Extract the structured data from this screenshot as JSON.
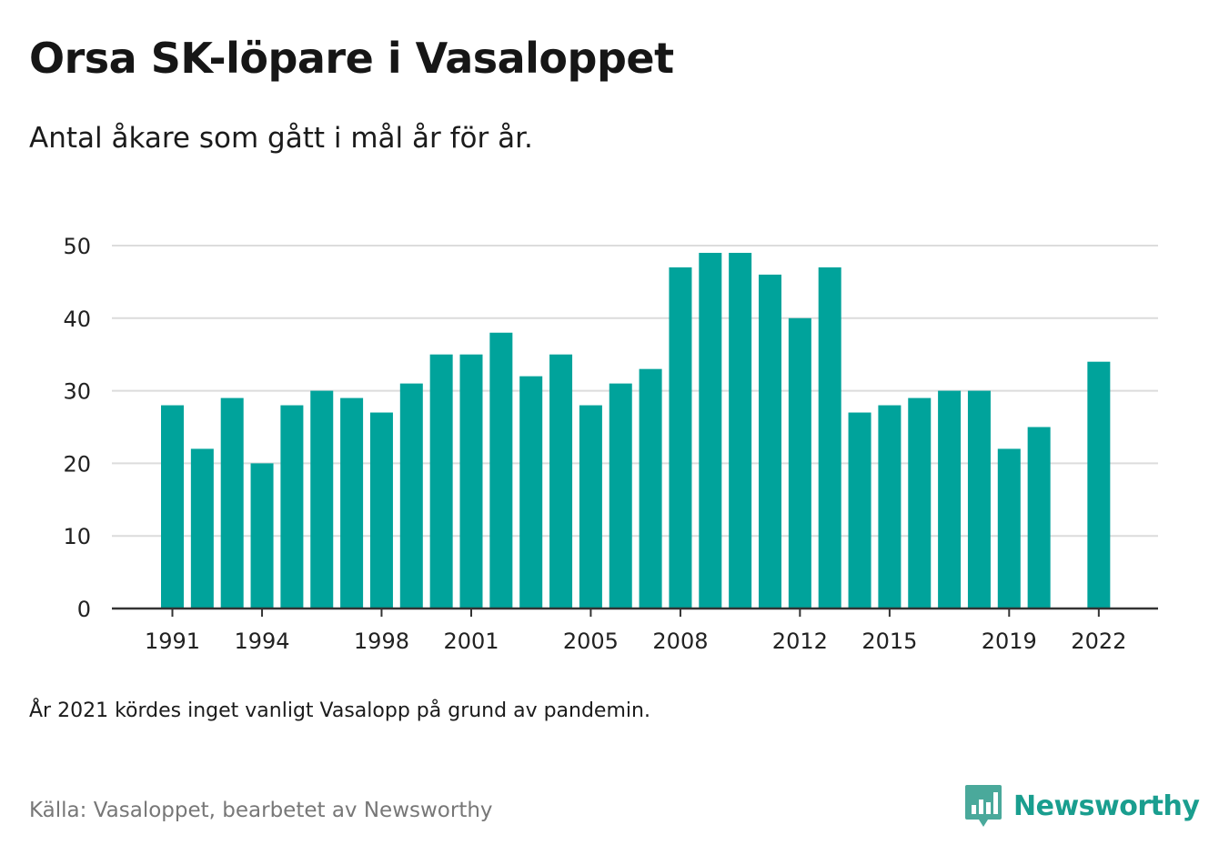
{
  "header": {
    "title": "Orsa SK-löpare i Vasaloppet",
    "subtitle": "Antal åkare som gått i mål år för år."
  },
  "footer": {
    "note": "År 2021 kördes inget vanligt Vasalopp på grund av pandemin.",
    "source": "Källa: Vasaloppet, bearbetet av Newsworthy",
    "brand": "Newsworthy",
    "brand_icon": "bar-chart-speech-bubble-icon"
  },
  "colors": {
    "bar": "#00a39b",
    "grid": "#dcdcdc",
    "axis": "#333333",
    "brand": "#1a9e8f"
  },
  "chart_data": {
    "type": "bar",
    "categories": [
      "1991",
      "1992",
      "1993",
      "1994",
      "1995",
      "1996",
      "1997",
      "1998",
      "1999",
      "2000",
      "2001",
      "2002",
      "2003",
      "2004",
      "2005",
      "2006",
      "2007",
      "2008",
      "2009",
      "2010",
      "2011",
      "2012",
      "2013",
      "2014",
      "2015",
      "2016",
      "2017",
      "2018",
      "2019",
      "2020",
      "2021",
      "2022"
    ],
    "values": [
      28,
      22,
      29,
      20,
      28,
      30,
      29,
      27,
      31,
      35,
      35,
      38,
      32,
      35,
      28,
      31,
      33,
      47,
      49,
      49,
      46,
      40,
      47,
      27,
      28,
      29,
      30,
      30,
      22,
      25,
      null,
      34
    ],
    "x_tick_labels": [
      "1991",
      "1994",
      "1998",
      "2001",
      "2005",
      "2008",
      "2012",
      "2015",
      "2019",
      "2022"
    ],
    "y_ticks": [
      "0",
      "10",
      "20",
      "30",
      "40",
      "50"
    ],
    "ylim": [
      0,
      50
    ],
    "xlabel": "",
    "ylabel": "",
    "grid": true,
    "legend": "none"
  }
}
